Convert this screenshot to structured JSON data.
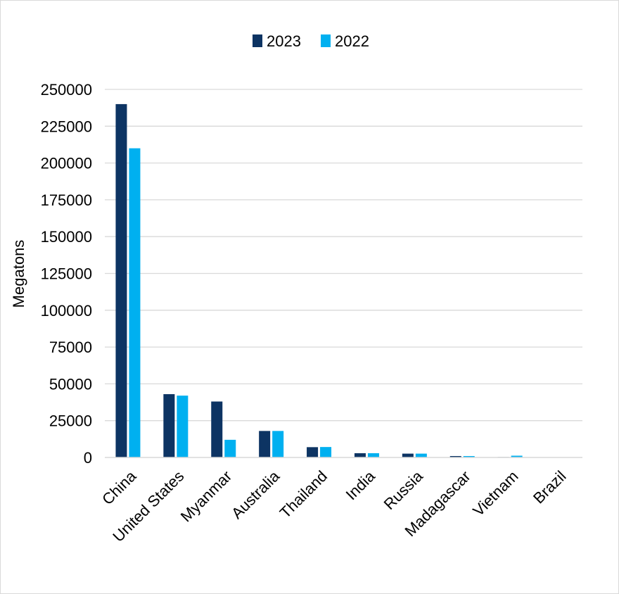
{
  "chart_data": {
    "type": "bar",
    "title": "",
    "xlabel": "",
    "ylabel": "Megatons",
    "ylim": [
      0,
      250000
    ],
    "yticks": [
      0,
      25000,
      50000,
      75000,
      100000,
      125000,
      150000,
      175000,
      200000,
      225000,
      250000
    ],
    "grid": true,
    "legend_position": "top",
    "categories": [
      "China",
      "United States",
      "Myanmar",
      "Australia",
      "Thailand",
      "India",
      "Russia",
      "Madagascar",
      "Vietnam",
      "Brazil"
    ],
    "series": [
      {
        "name": "2023",
        "color": "#0d3463",
        "values": [
          240000,
          43000,
          38000,
          18000,
          7000,
          2900,
          2600,
          960,
          300,
          80
        ]
      },
      {
        "name": "2022",
        "color": "#00b0f0",
        "values": [
          210000,
          42000,
          12000,
          18000,
          7100,
          2900,
          2600,
          960,
          1200,
          80
        ]
      }
    ]
  }
}
